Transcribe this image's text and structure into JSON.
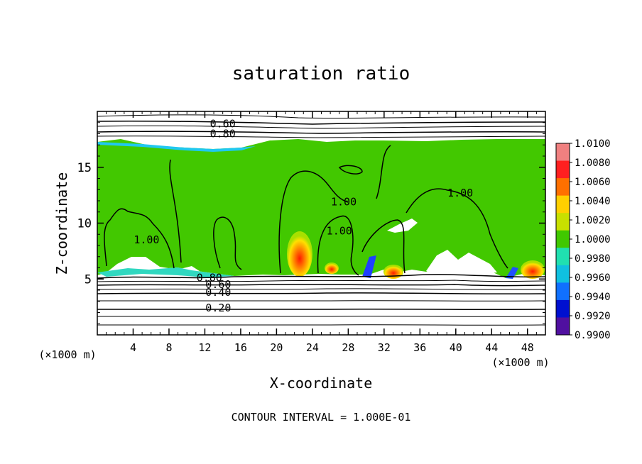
{
  "chart_data": {
    "type": "heatmap",
    "title": "saturation ratio",
    "xlabel": "X-coordinate",
    "ylabel": "Z-coordinate",
    "x_unit": "(×1000 m)",
    "y_unit": "(×1000 m)",
    "xlim": [
      0,
      50
    ],
    "ylim": [
      0,
      20
    ],
    "x_ticks": [
      4,
      8,
      12,
      16,
      20,
      24,
      28,
      32,
      36,
      40,
      44,
      48
    ],
    "y_ticks": [
      5,
      10,
      15
    ],
    "colorbar": {
      "levels": [
        "1.0100",
        "1.0080",
        "1.0060",
        "1.0040",
        "1.0020",
        "1.0000",
        "0.9980",
        "0.9960",
        "0.9940",
        "0.9920",
        "0.9900"
      ],
      "colors": [
        "#f08080",
        "#ff2020",
        "#ff7000",
        "#ffd000",
        "#c8e000",
        "#40c800",
        "#20e0b0",
        "#10c0e0",
        "#1070ff",
        "#0010d0",
        "#5010a0"
      ]
    },
    "contour_labels": [
      {
        "text": "0.60",
        "x": 14,
        "y": 18.9
      },
      {
        "text": "0.80",
        "x": 14,
        "y": 18.0
      },
      {
        "text": "1.00",
        "x": 5.5,
        "y": 8.5
      },
      {
        "text": "0.80",
        "x": 12.5,
        "y": 5.1
      },
      {
        "text": "0.60",
        "x": 13.5,
        "y": 4.5
      },
      {
        "text": "0.40",
        "x": 13.5,
        "y": 3.8
      },
      {
        "text": "0.20",
        "x": 13.5,
        "y": 2.4
      },
      {
        "text": "1.00",
        "x": 27.5,
        "y": 11.9
      },
      {
        "text": "1.00",
        "x": 27,
        "y": 9.3
      },
      {
        "text": "1.00",
        "x": 40.5,
        "y": 12.7
      }
    ],
    "footer": "CONTOUR INTERVAL = 1.000E-01"
  }
}
